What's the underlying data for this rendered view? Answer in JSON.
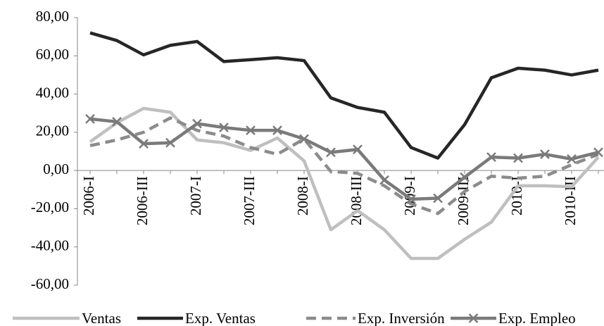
{
  "chart_data": {
    "type": "line",
    "categories": [
      "2006-I",
      null,
      "2006-III",
      null,
      "2007-I",
      null,
      "2007-III",
      null,
      "2008-I",
      null,
      "2008-III",
      null,
      "2009-I",
      null,
      "2009-III",
      null,
      "2010-I",
      null,
      "2010-III",
      null
    ],
    "series": [
      {
        "name": "Ventas",
        "color": "#bfbfbf",
        "dash": false,
        "marker": false,
        "values": [
          15,
          25,
          32.5,
          30.5,
          16,
          14.5,
          10.5,
          17,
          5,
          -31,
          -21,
          -31,
          -46,
          -46,
          -36,
          -27,
          -8,
          -8,
          -8.5,
          7
        ]
      },
      {
        "name": "Exp. Ventas",
        "color": "#262626",
        "dash": false,
        "marker": false,
        "values": [
          72,
          68,
          60.5,
          65.5,
          67.5,
          57,
          58,
          59,
          57.5,
          38,
          33,
          30.5,
          12,
          6.5,
          24,
          48.5,
          53.5,
          52.5,
          50,
          52.5
        ]
      },
      {
        "name": "Exp. Inversión",
        "color": "#8c8c8c",
        "dash": true,
        "marker": false,
        "values": [
          13,
          16,
          20,
          27.5,
          21,
          18,
          12,
          8.5,
          16.5,
          -0.5,
          -1.5,
          -8,
          -17.5,
          -22.5,
          -11,
          -3,
          -4,
          -3,
          3,
          8.5
        ]
      },
      {
        "name": "Exp. Empleo",
        "color": "#7a7a7a",
        "dash": false,
        "marker": true,
        "values": [
          27,
          25.5,
          14,
          14.5,
          24.5,
          22.5,
          21,
          21,
          16.5,
          9.5,
          11,
          -5,
          -15,
          -14.5,
          -3.5,
          7,
          6.5,
          8.5,
          6,
          9.5
        ]
      }
    ],
    "ylim": [
      -60,
      80
    ],
    "yticks": [
      {
        "value": -60,
        "label": "-60,00"
      },
      {
        "value": -40,
        "label": "-40,00"
      },
      {
        "value": -20,
        "label": "-20,00"
      },
      {
        "value": 0,
        "label": "0,00"
      },
      {
        "value": 20,
        "label": "20,00"
      },
      {
        "value": 40,
        "label": "40,00"
      },
      {
        "value": 60,
        "label": "60,00"
      },
      {
        "value": 80,
        "label": "80,00"
      }
    ],
    "grid": false
  }
}
